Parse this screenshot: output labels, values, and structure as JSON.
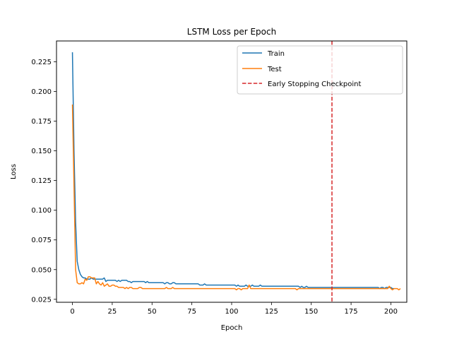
{
  "chart_data": {
    "type": "line",
    "title": "LSTM Loss per Epoch",
    "xlabel": "Epoch",
    "ylabel": "Loss",
    "xlim": [
      -10,
      210
    ],
    "ylim": [
      0.0225,
      0.2425
    ],
    "xticks": [
      0,
      25,
      50,
      75,
      100,
      125,
      150,
      175,
      200
    ],
    "yticks": [
      0.025,
      0.05,
      0.075,
      0.1,
      0.125,
      0.15,
      0.175,
      0.2,
      0.225
    ],
    "grid": false,
    "legend_position": "top-right",
    "series": [
      {
        "name": "Train",
        "color": "#1f77b4",
        "epochs_start": 0,
        "values": [
          0.233,
          0.15,
          0.09,
          0.057,
          0.05,
          0.046,
          0.044,
          0.043,
          0.043,
          0.042,
          0.042,
          0.042,
          0.043,
          0.042,
          0.042,
          0.042,
          0.042,
          0.042,
          0.042,
          0.042,
          0.043,
          0.04,
          0.041,
          0.041,
          0.041,
          0.041,
          0.041,
          0.041,
          0.04,
          0.041,
          0.04,
          0.041,
          0.041,
          0.041,
          0.041,
          0.04,
          0.04,
          0.039,
          0.04,
          0.04,
          0.04,
          0.04,
          0.04,
          0.04,
          0.04,
          0.04,
          0.039,
          0.04,
          0.039,
          0.039,
          0.039,
          0.039,
          0.039,
          0.039,
          0.039,
          0.039,
          0.039,
          0.039,
          0.038,
          0.039,
          0.039,
          0.038,
          0.038,
          0.039,
          0.039,
          0.038,
          0.038,
          0.038,
          0.038,
          0.038,
          0.038,
          0.038,
          0.038,
          0.038,
          0.038,
          0.038,
          0.038,
          0.038,
          0.038,
          0.038,
          0.037,
          0.037,
          0.037,
          0.038,
          0.037,
          0.037,
          0.037,
          0.037,
          0.037,
          0.037,
          0.037,
          0.037,
          0.037,
          0.037,
          0.037,
          0.037,
          0.037,
          0.037,
          0.037,
          0.037,
          0.037,
          0.037,
          0.037,
          0.036,
          0.037,
          0.036,
          0.036,
          0.036,
          0.036,
          0.037,
          0.036,
          0.036,
          0.036,
          0.037,
          0.036,
          0.036,
          0.036,
          0.036,
          0.037,
          0.036,
          0.036,
          0.036,
          0.036,
          0.036,
          0.036,
          0.036,
          0.036,
          0.036,
          0.036,
          0.036,
          0.036,
          0.036,
          0.036,
          0.036,
          0.036,
          0.036,
          0.036,
          0.036,
          0.036,
          0.036,
          0.036,
          0.036,
          0.036,
          0.035,
          0.036,
          0.035,
          0.035,
          0.036,
          0.035,
          0.035,
          0.035,
          0.035,
          0.035,
          0.035,
          0.035,
          0.035,
          0.035,
          0.035,
          0.035,
          0.035,
          0.035,
          0.035,
          0.035,
          0.035,
          0.035,
          0.035,
          0.035,
          0.035,
          0.035,
          0.035,
          0.035,
          0.035,
          0.035,
          0.035,
          0.035,
          0.035,
          0.035,
          0.035,
          0.035,
          0.035,
          0.035,
          0.035,
          0.035,
          0.035,
          0.035,
          0.035,
          0.035,
          0.035,
          0.035,
          0.035,
          0.035,
          0.035,
          0.035,
          0.034,
          0.035,
          0.035,
          0.034,
          0.035,
          0.035,
          0.035,
          0.035,
          0.034,
          0.034
        ]
      },
      {
        "name": "Test",
        "color": "#ff7f0e",
        "epochs_start": 0,
        "values": [
          0.189,
          0.12,
          0.05,
          0.039,
          0.038,
          0.038,
          0.039,
          0.038,
          0.042,
          0.041,
          0.044,
          0.044,
          0.043,
          0.043,
          0.043,
          0.038,
          0.04,
          0.038,
          0.037,
          0.039,
          0.036,
          0.037,
          0.038,
          0.036,
          0.036,
          0.037,
          0.037,
          0.036,
          0.036,
          0.035,
          0.035,
          0.035,
          0.035,
          0.034,
          0.035,
          0.034,
          0.035,
          0.035,
          0.034,
          0.034,
          0.034,
          0.034,
          0.035,
          0.035,
          0.034,
          0.034,
          0.034,
          0.034,
          0.034,
          0.034,
          0.034,
          0.034,
          0.034,
          0.034,
          0.034,
          0.034,
          0.034,
          0.034,
          0.034,
          0.035,
          0.034,
          0.034,
          0.034,
          0.035,
          0.034,
          0.034,
          0.034,
          0.034,
          0.034,
          0.034,
          0.034,
          0.034,
          0.034,
          0.034,
          0.034,
          0.034,
          0.034,
          0.034,
          0.034,
          0.034,
          0.034,
          0.034,
          0.034,
          0.034,
          0.034,
          0.034,
          0.034,
          0.034,
          0.034,
          0.034,
          0.034,
          0.034,
          0.034,
          0.034,
          0.034,
          0.034,
          0.034,
          0.034,
          0.034,
          0.034,
          0.034,
          0.034,
          0.034,
          0.033,
          0.034,
          0.034,
          0.033,
          0.034,
          0.034,
          0.034,
          0.034,
          0.037,
          0.034,
          0.034,
          0.034,
          0.034,
          0.034,
          0.034,
          0.034,
          0.034,
          0.034,
          0.034,
          0.034,
          0.034,
          0.034,
          0.034,
          0.034,
          0.034,
          0.034,
          0.034,
          0.034,
          0.034,
          0.034,
          0.034,
          0.034,
          0.034,
          0.034,
          0.034,
          0.034,
          0.034,
          0.034,
          0.033,
          0.034,
          0.034,
          0.034,
          0.034,
          0.034,
          0.034,
          0.034,
          0.034,
          0.034,
          0.034,
          0.034,
          0.034,
          0.034,
          0.034,
          0.034,
          0.034,
          0.034,
          0.034,
          0.034,
          0.034,
          0.034,
          0.034,
          0.034,
          0.034,
          0.034,
          0.034,
          0.034,
          0.034,
          0.034,
          0.034,
          0.034,
          0.034,
          0.034,
          0.034,
          0.034,
          0.034,
          0.034,
          0.034,
          0.034,
          0.034,
          0.034,
          0.034,
          0.034,
          0.034,
          0.034,
          0.034,
          0.034,
          0.034,
          0.034,
          0.034,
          0.034,
          0.034,
          0.034,
          0.034,
          0.034,
          0.034,
          0.034,
          0.036,
          0.034,
          0.033,
          0.034,
          0.034,
          0.034,
          0.033,
          0.034
        ]
      }
    ],
    "vlines": [
      {
        "name": "Early Stopping Checkpoint",
        "x": 163,
        "color": "#d62728",
        "style": "dashed"
      }
    ]
  }
}
